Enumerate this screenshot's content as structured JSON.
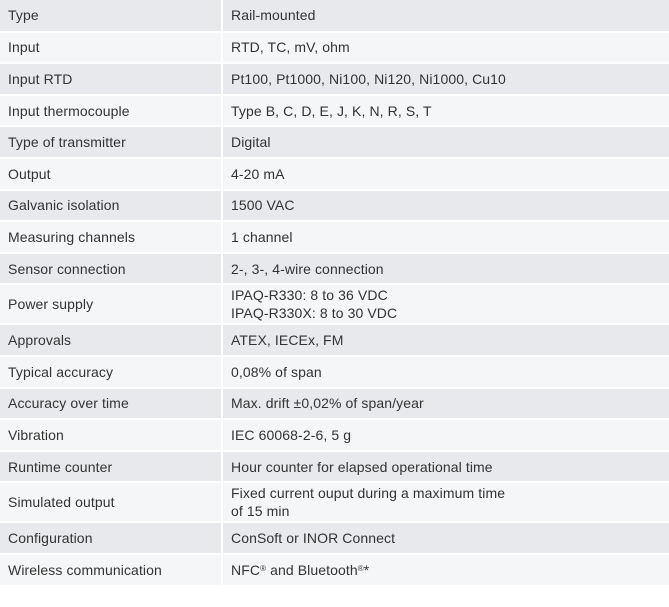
{
  "rows": [
    {
      "label": "Type",
      "value": "Rail-mounted"
    },
    {
      "label": "Input",
      "value": "RTD, TC, mV, ohm"
    },
    {
      "label": "Input RTD",
      "value": "Pt100, Pt1000, Ni100, Ni120, Ni1000, Cu10"
    },
    {
      "label": "Input thermocouple",
      "value": "Type B, C, D, E, J, K, N, R, S, T"
    },
    {
      "label": "Type of transmitter",
      "value": "Digital"
    },
    {
      "label": "Output",
      "value": "4-20 mA"
    },
    {
      "label": "Galvanic isolation",
      "value": "1500 VAC"
    },
    {
      "label": "Measuring channels",
      "value": "1 channel"
    },
    {
      "label": "Sensor connection",
      "value": "2-, 3-, 4-wire connection"
    },
    {
      "label": "Power supply",
      "lines": [
        "IPAQ-R330: 8 to 36 VDC",
        "IPAQ-R330X: 8 to 30 VDC"
      ]
    },
    {
      "label": "Approvals",
      "value": "ATEX, IECEx, FM"
    },
    {
      "label": "Typical accuracy",
      "value": "0,08% of span"
    },
    {
      "label": "Accuracy over time",
      "value": "Max. drift ±0,02% of span/year"
    },
    {
      "label": "Vibration",
      "value": "IEC 60068-2-6, 5 g"
    },
    {
      "label": "Runtime counter",
      "value": "Hour counter for elapsed operational time"
    },
    {
      "label": "Simulated output",
      "lines": [
        "Fixed current ouput during a maximum time",
        "of 15 min"
      ]
    },
    {
      "label": "Configuration",
      "value": "ConSoft or INOR Connect"
    },
    {
      "label": "Wireless communication",
      "parts": {
        "nfc": "NFC",
        "reg1": "®",
        "and": " and Bluetooth",
        "reg2": "®",
        "star": "*"
      }
    }
  ]
}
